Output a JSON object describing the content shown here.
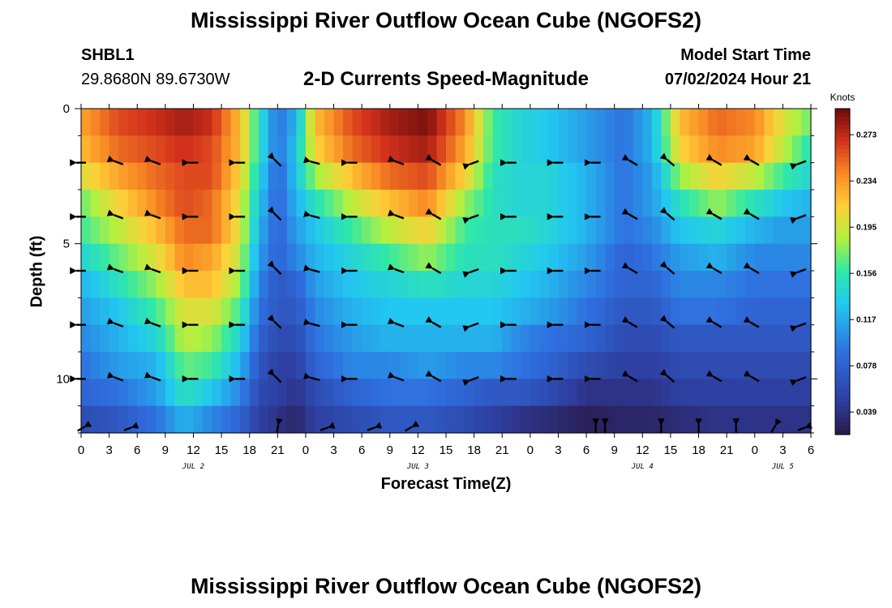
{
  "page_title": "Mississippi River Outflow Ocean Cube (NGOFS2)",
  "station": {
    "name": "SHBL1",
    "coords": "29.8680N  89.6730W"
  },
  "model_start": {
    "label": "Model Start Time",
    "value": "07/02/2024 Hour 21"
  },
  "colorbar": {
    "unit": "Knots",
    "ticks": [
      "0.273",
      "0.234",
      "0.195",
      "0.156",
      "0.117",
      "0.078",
      "0.039"
    ],
    "min": 0.02,
    "max": 0.295
  },
  "chart_data": {
    "type": "heatmap",
    "title": "2-D Currents Speed-Magnitude",
    "xlabel": "Forecast Time(Z)",
    "ylabel": "Depth (ft)",
    "x_range_hours": [
      0,
      78
    ],
    "y_range_ft": [
      0,
      12
    ],
    "x_tick_labels": [
      "0",
      "3",
      "6",
      "9",
      "12",
      "15",
      "18",
      "21",
      "0",
      "3",
      "6",
      "9",
      "12",
      "15",
      "18",
      "21",
      "0",
      "3",
      "6",
      "9",
      "12",
      "15",
      "18",
      "21",
      "0",
      "3",
      "6"
    ],
    "y_tick_labels": [
      "0",
      "5",
      "10"
    ],
    "date_labels": [
      {
        "text": "JUL 2",
        "hour": 12
      },
      {
        "text": "JUL 3",
        "hour": 36
      },
      {
        "text": "JUL 4",
        "hour": 60
      },
      {
        "text": "JUL 5",
        "hour": 75
      }
    ],
    "depth_rows_ft": [
      0.5,
      1.5,
      2.5,
      3.5,
      4.5,
      5.5,
      6.5,
      7.5,
      8.5,
      9.5,
      10.5,
      11.5
    ],
    "speed_knots_keyframes": [
      {
        "hour": 0,
        "speeds": [
          0.23,
          0.22,
          0.2,
          0.17,
          0.16,
          0.14,
          0.12,
          0.11,
          0.1,
          0.09,
          0.08,
          0.06
        ]
      },
      {
        "hour": 4,
        "speeds": [
          0.26,
          0.25,
          0.23,
          0.21,
          0.19,
          0.17,
          0.15,
          0.13,
          0.12,
          0.11,
          0.09,
          0.07
        ]
      },
      {
        "hour": 8,
        "speeds": [
          0.27,
          0.26,
          0.25,
          0.24,
          0.22,
          0.2,
          0.18,
          0.16,
          0.14,
          0.12,
          0.11,
          0.09
        ]
      },
      {
        "hour": 11,
        "speeds": [
          0.28,
          0.27,
          0.26,
          0.26,
          0.25,
          0.24,
          0.22,
          0.2,
          0.19,
          0.17,
          0.15,
          0.12
        ]
      },
      {
        "hour": 14,
        "speeds": [
          0.27,
          0.26,
          0.26,
          0.25,
          0.25,
          0.23,
          0.22,
          0.2,
          0.18,
          0.16,
          0.13,
          0.1
        ]
      },
      {
        "hour": 17,
        "speeds": [
          0.22,
          0.22,
          0.21,
          0.2,
          0.2,
          0.19,
          0.18,
          0.16,
          0.14,
          0.12,
          0.1,
          0.08
        ]
      },
      {
        "hour": 19,
        "speeds": [
          0.15,
          0.15,
          0.14,
          0.13,
          0.12,
          0.11,
          0.1,
          0.09,
          0.08,
          0.07,
          0.06,
          0.05
        ]
      },
      {
        "hour": 21,
        "speeds": [
          0.09,
          0.09,
          0.08,
          0.08,
          0.08,
          0.08,
          0.07,
          0.07,
          0.06,
          0.05,
          0.05,
          0.04
        ]
      },
      {
        "hour": 23,
        "speeds": [
          0.12,
          0.13,
          0.13,
          0.12,
          0.11,
          0.1,
          0.08,
          0.07,
          0.06,
          0.05,
          0.04,
          0.03
        ]
      },
      {
        "hour": 25,
        "speeds": [
          0.22,
          0.21,
          0.18,
          0.15,
          0.13,
          0.12,
          0.11,
          0.1,
          0.09,
          0.08,
          0.06,
          0.05
        ]
      },
      {
        "hour": 29,
        "speeds": [
          0.26,
          0.25,
          0.22,
          0.19,
          0.16,
          0.14,
          0.13,
          0.12,
          0.11,
          0.1,
          0.08,
          0.06
        ]
      },
      {
        "hour": 33,
        "speeds": [
          0.28,
          0.27,
          0.25,
          0.22,
          0.19,
          0.16,
          0.14,
          0.13,
          0.12,
          0.1,
          0.09,
          0.07
        ]
      },
      {
        "hour": 37,
        "speeds": [
          0.29,
          0.28,
          0.26,
          0.24,
          0.21,
          0.18,
          0.15,
          0.13,
          0.12,
          0.11,
          0.09,
          0.07
        ]
      },
      {
        "hour": 41,
        "speeds": [
          0.24,
          0.23,
          0.21,
          0.18,
          0.16,
          0.15,
          0.14,
          0.13,
          0.12,
          0.1,
          0.08,
          0.06
        ]
      },
      {
        "hour": 44,
        "speeds": [
          0.16,
          0.16,
          0.15,
          0.15,
          0.15,
          0.15,
          0.14,
          0.13,
          0.12,
          0.1,
          0.07,
          0.05
        ]
      },
      {
        "hour": 47,
        "speeds": [
          0.14,
          0.14,
          0.14,
          0.14,
          0.15,
          0.14,
          0.13,
          0.12,
          0.1,
          0.09,
          0.07,
          0.04
        ]
      },
      {
        "hour": 50,
        "speeds": [
          0.13,
          0.13,
          0.14,
          0.14,
          0.14,
          0.13,
          0.12,
          0.11,
          0.09,
          0.08,
          0.06,
          0.035
        ]
      },
      {
        "hour": 54,
        "speeds": [
          0.11,
          0.11,
          0.12,
          0.12,
          0.12,
          0.11,
          0.1,
          0.09,
          0.08,
          0.06,
          0.04,
          0.025
        ]
      },
      {
        "hour": 58,
        "speeds": [
          0.09,
          0.09,
          0.09,
          0.09,
          0.09,
          0.08,
          0.08,
          0.07,
          0.06,
          0.05,
          0.04,
          0.03
        ]
      },
      {
        "hour": 61,
        "speeds": [
          0.12,
          0.12,
          0.11,
          0.11,
          0.1,
          0.09,
          0.08,
          0.07,
          0.06,
          0.05,
          0.04,
          0.03
        ]
      },
      {
        "hour": 64,
        "speeds": [
          0.22,
          0.21,
          0.18,
          0.15,
          0.13,
          0.11,
          0.1,
          0.09,
          0.07,
          0.06,
          0.05,
          0.035
        ]
      },
      {
        "hour": 68,
        "speeds": [
          0.25,
          0.24,
          0.21,
          0.18,
          0.14,
          0.12,
          0.1,
          0.09,
          0.07,
          0.06,
          0.05,
          0.04
        ]
      },
      {
        "hour": 72,
        "speeds": [
          0.24,
          0.23,
          0.19,
          0.15,
          0.12,
          0.1,
          0.09,
          0.08,
          0.07,
          0.06,
          0.05,
          0.04
        ]
      },
      {
        "hour": 75,
        "speeds": [
          0.2,
          0.19,
          0.16,
          0.13,
          0.11,
          0.1,
          0.09,
          0.08,
          0.07,
          0.06,
          0.05,
          0.04
        ]
      },
      {
        "hour": 78,
        "speeds": [
          0.17,
          0.15,
          0.14,
          0.12,
          0.11,
          0.1,
          0.09,
          0.08,
          0.07,
          0.06,
          0.05,
          0.04
        ]
      }
    ],
    "vector_columns_hours": [
      0,
      4,
      8,
      12,
      17,
      21,
      25,
      29,
      34,
      38,
      42,
      46,
      51,
      55,
      59,
      63,
      68,
      72,
      77
    ],
    "vector_rows_ft": [
      2,
      4,
      6,
      8,
      10
    ],
    "vector_direction_deg_by_column": [
      180,
      160,
      160,
      180,
      180,
      135,
      165,
      180,
      160,
      150,
      200,
      180,
      180,
      180,
      150,
      140,
      150,
      150,
      200
    ],
    "bottom_vectors": [
      {
        "hour": 0,
        "dir_deg": 30
      },
      {
        "hour": 5,
        "dir_deg": 20
      },
      {
        "hour": 21,
        "dir_deg": 80
      },
      {
        "hour": 26,
        "dir_deg": 20
      },
      {
        "hour": 31,
        "dir_deg": 20
      },
      {
        "hour": 35,
        "dir_deg": 30
      },
      {
        "hour": 55,
        "dir_deg": 90
      },
      {
        "hour": 56,
        "dir_deg": 90
      },
      {
        "hour": 62,
        "dir_deg": 90
      },
      {
        "hour": 66,
        "dir_deg": 90
      },
      {
        "hour": 70,
        "dir_deg": 90
      },
      {
        "hour": 74,
        "dir_deg": 60
      },
      {
        "hour": 77,
        "dir_deg": 20
      }
    ]
  }
}
